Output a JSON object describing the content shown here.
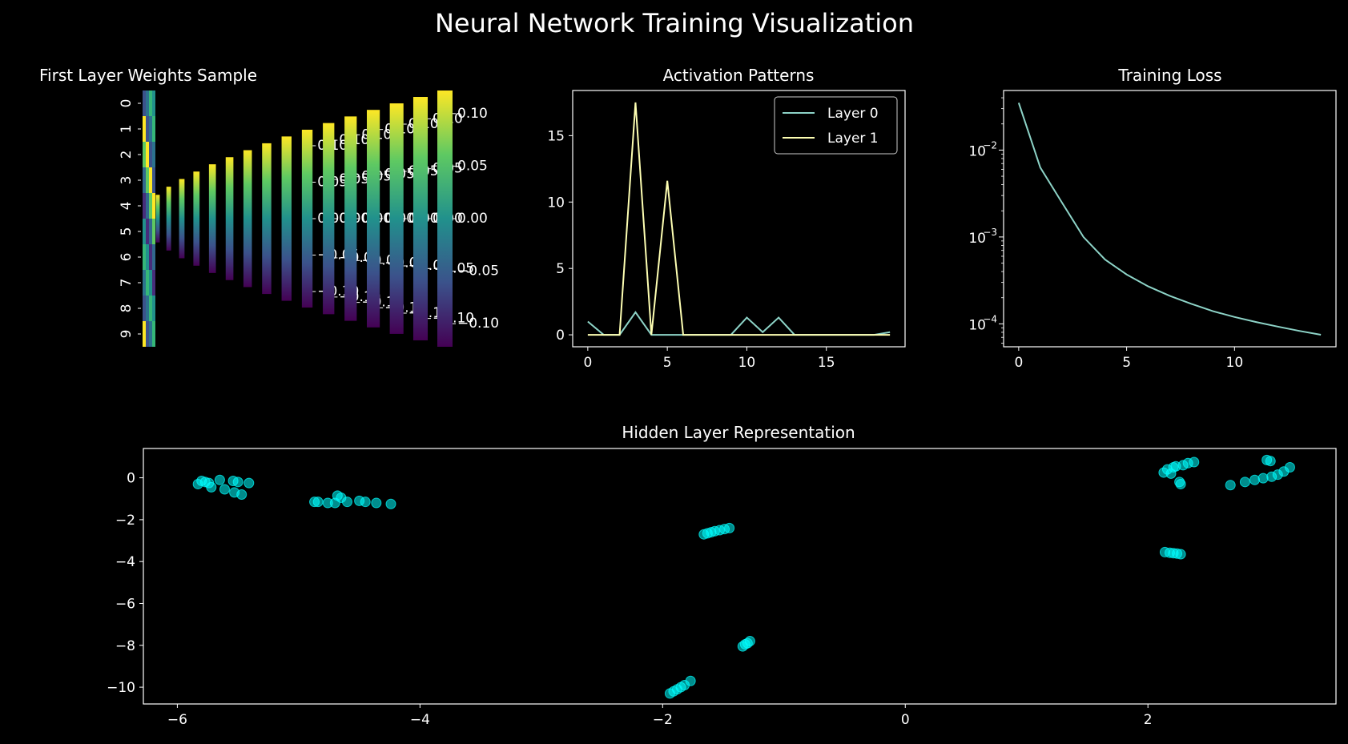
{
  "suptitle": "Neural Network Training Visualization",
  "heatmap": {
    "title": "First Layer Weights Sample",
    "yticks": [
      "0",
      "1",
      "2",
      "3",
      "4",
      "5",
      "6",
      "7",
      "8",
      "9"
    ],
    "colorbar_ticks": [
      "0.10",
      "0.05",
      "0.00",
      "−0.05",
      "−0.10"
    ],
    "colormap": "viridis",
    "colorbar_count": 16
  },
  "chart_data": [
    {
      "type": "line",
      "title": "Activation Patterns",
      "x": [
        0,
        1,
        2,
        3,
        4,
        5,
        6,
        7,
        8,
        9,
        10,
        11,
        12,
        13,
        14,
        15,
        16,
        17,
        18,
        19
      ],
      "series": [
        {
          "name": "Layer 0",
          "color": "#8dd3c7",
          "values": [
            1.0,
            0,
            0,
            1.7,
            0,
            0,
            0,
            0,
            0,
            0,
            1.3,
            0.2,
            1.3,
            0,
            0,
            0,
            0,
            0,
            0,
            0.2
          ]
        },
        {
          "name": "Layer 1",
          "color": "#feffb3",
          "values": [
            0,
            0,
            0,
            17.5,
            0,
            11.6,
            0,
            0,
            0,
            0,
            0,
            0,
            0,
            0,
            0,
            0,
            0,
            0,
            0,
            0
          ]
        }
      ],
      "xticks": [
        "0",
        "5",
        "10",
        "15"
      ],
      "yticks": [
        "0",
        "5",
        "10",
        "15"
      ],
      "xlim": [
        -0.95,
        19.95
      ],
      "ylim": [
        -0.9,
        18.4
      ],
      "legend": "upper right"
    },
    {
      "type": "line",
      "title": "Training Loss",
      "yscale": "log",
      "x": [
        0,
        1,
        2,
        3,
        4,
        5,
        6,
        7,
        8,
        9,
        10,
        11,
        12,
        13,
        14
      ],
      "series": [
        {
          "name": "",
          "color": "#8dd3c7",
          "values": [
            0.035,
            0.0063,
            0.0025,
            0.001,
            0.00055,
            0.00037,
            0.00027,
            0.00021,
            0.00017,
            0.00014,
            0.00012,
            0.000105,
            9.3e-05,
            8.3e-05,
            7.5e-05
          ]
        }
      ],
      "xticks": [
        "0",
        "5",
        "10"
      ],
      "ytick_values": [
        0.01,
        0.001,
        0.0001
      ],
      "ytick_labels": [
        [
          "10",
          "−2"
        ],
        [
          "10",
          "−3"
        ],
        [
          "10",
          "−4"
        ]
      ],
      "xlim": [
        -0.7,
        14.7
      ],
      "ylim": [
        5.45e-05,
        0.0485
      ]
    },
    {
      "type": "scatter",
      "title": "Hidden Layer Representation",
      "color": "#00ffff",
      "xticks": [
        "−6",
        "−4",
        "−2",
        "0",
        "2"
      ],
      "xtick_values": [
        -6,
        -4,
        -2,
        0,
        2
      ],
      "yticks": [
        "0",
        "−2",
        "−4",
        "−6",
        "−8",
        "−10"
      ],
      "ytick_values": [
        0,
        -2,
        -4,
        -6,
        -8,
        -10
      ],
      "xlim": [
        -6.28,
        3.55
      ],
      "ylim": [
        -10.8,
        1.4
      ],
      "points": [
        [
          -5.83,
          -0.3
        ],
        [
          -5.8,
          -0.15
        ],
        [
          -5.77,
          -0.2
        ],
        [
          -5.74,
          -0.25
        ],
        [
          -5.72,
          -0.45
        ],
        [
          -5.65,
          -0.1
        ],
        [
          -5.61,
          -0.55
        ],
        [
          -5.54,
          -0.15
        ],
        [
          -5.53,
          -0.7
        ],
        [
          -5.5,
          -0.2
        ],
        [
          -5.47,
          -0.8
        ],
        [
          -5.41,
          -0.25
        ],
        [
          -4.87,
          -1.15
        ],
        [
          -4.84,
          -1.15
        ],
        [
          -4.76,
          -1.2
        ],
        [
          -4.7,
          -1.2
        ],
        [
          -4.68,
          -0.85
        ],
        [
          -4.65,
          -0.95
        ],
        [
          -4.6,
          -1.15
        ],
        [
          -4.5,
          -1.1
        ],
        [
          -4.45,
          -1.15
        ],
        [
          -4.36,
          -1.2
        ],
        [
          -4.24,
          -1.25
        ],
        [
          -1.66,
          -2.7
        ],
        [
          -1.63,
          -2.65
        ],
        [
          -1.6,
          -2.6
        ],
        [
          -1.57,
          -2.55
        ],
        [
          -1.53,
          -2.5
        ],
        [
          -1.49,
          -2.45
        ],
        [
          -1.45,
          -2.4
        ],
        [
          -1.34,
          -8.05
        ],
        [
          -1.32,
          -7.95
        ],
        [
          -1.3,
          -7.9
        ],
        [
          -1.28,
          -7.8
        ],
        [
          -1.94,
          -10.3
        ],
        [
          -1.91,
          -10.2
        ],
        [
          -1.88,
          -10.1
        ],
        [
          -1.85,
          -10.0
        ],
        [
          -1.82,
          -9.9
        ],
        [
          -1.77,
          -9.7
        ],
        [
          2.13,
          0.25
        ],
        [
          2.16,
          0.4
        ],
        [
          2.19,
          0.2
        ],
        [
          2.21,
          0.5
        ],
        [
          2.23,
          0.55
        ],
        [
          2.26,
          -0.2
        ],
        [
          2.27,
          -0.3
        ],
        [
          2.29,
          0.6
        ],
        [
          2.33,
          0.7
        ],
        [
          2.38,
          0.75
        ],
        [
          2.14,
          -3.55
        ],
        [
          2.18,
          -3.58
        ],
        [
          2.21,
          -3.6
        ],
        [
          2.24,
          -3.62
        ],
        [
          2.27,
          -3.65
        ],
        [
          2.68,
          -0.35
        ],
        [
          2.8,
          -0.2
        ],
        [
          2.88,
          -0.1
        ],
        [
          2.95,
          -0.02
        ],
        [
          3.02,
          0.05
        ],
        [
          3.07,
          0.15
        ],
        [
          3.12,
          0.3
        ],
        [
          3.17,
          0.5
        ],
        [
          2.98,
          0.85
        ],
        [
          3.01,
          0.8
        ]
      ]
    }
  ]
}
